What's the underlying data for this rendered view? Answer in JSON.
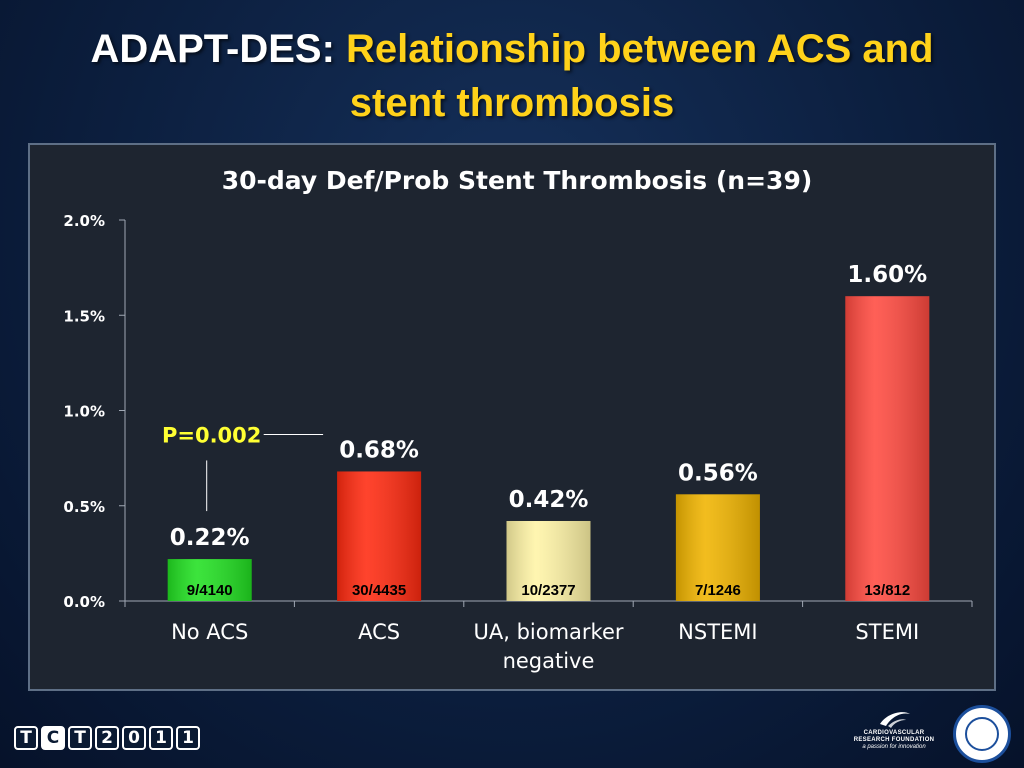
{
  "slide": {
    "title_prefix": "ADAPT-DES:",
    "title_accent_line1": "Relationship between ACS and",
    "title_accent_line2": "stent thrombosis"
  },
  "colors": {
    "title_accent": "#ffd21a",
    "p_value": "#ffff33",
    "bar_no_acs": "#22e022",
    "bar_acs": "#ff2a10",
    "bar_ua": "#fff4a6",
    "bar_nstemi": "#f0b400",
    "bar_stemi": "#ff4a40"
  },
  "chart_data": {
    "type": "bar",
    "title": "30-day Def/Prob Stent Thrombosis (n=39)",
    "categories": [
      [
        "No ACS"
      ],
      [
        "ACS"
      ],
      [
        "UA, biomarker",
        "negative"
      ],
      [
        "NSTEMI"
      ],
      [
        "STEMI"
      ]
    ],
    "values": [
      0.22,
      0.68,
      0.42,
      0.56,
      1.6
    ],
    "value_labels": [
      "0.22%",
      "0.68%",
      "0.42%",
      "0.56%",
      "1.60%"
    ],
    "count_labels": [
      "9/4140",
      "30/4435",
      "10/2377",
      "7/1246",
      "13/812"
    ],
    "bar_colors": [
      "#22e022",
      "#ff2a10",
      "#fff4a6",
      "#f0b400",
      "#ff4a40"
    ],
    "yticks": [
      0.0,
      0.5,
      1.0,
      1.5,
      2.0
    ],
    "ytick_labels": [
      "0.0%",
      "0.5%",
      "1.0%",
      "1.5%",
      "2.0%"
    ],
    "ylim": [
      0,
      2.0
    ],
    "xlabel": "",
    "ylabel": "",
    "grid": false,
    "annotation": {
      "text": "P=0.002",
      "between": [
        0,
        1
      ]
    }
  },
  "footer": {
    "tct_letters": [
      "T",
      "C",
      "T",
      "2",
      "0",
      "1",
      "1"
    ],
    "crf_name_line1": "CARDIOVASCULAR",
    "crf_name_line2": "RESEARCH FOUNDATION",
    "crf_tagline": "a passion for innovation"
  }
}
